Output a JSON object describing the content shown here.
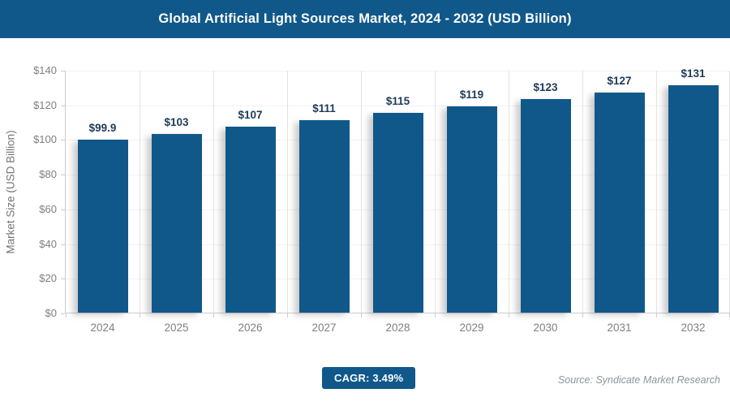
{
  "header": {
    "title": "Global Artificial Light Sources Market, 2024 - 2032 (USD Billion)"
  },
  "chart_data": {
    "type": "bar",
    "title": "Global Artificial Light Sources Market, 2024 - 2032 (USD Billion)",
    "categories": [
      "2024",
      "2025",
      "2026",
      "2027",
      "2028",
      "2029",
      "2030",
      "2031",
      "2032"
    ],
    "values": [
      99.9,
      103,
      107,
      111,
      115,
      119,
      123,
      127,
      131
    ],
    "value_labels": [
      "$99.9",
      "$103",
      "$107",
      "$111",
      "$115",
      "$119",
      "$123",
      "$127",
      "$131"
    ],
    "xlabel": "",
    "ylabel": "Market Size (USD Billion)",
    "ylim": [
      0,
      140
    ],
    "ytick_step": 20,
    "ytick_labels": [
      "$0",
      "$20",
      "$40",
      "$60",
      "$80",
      "$100",
      "$120",
      "$140"
    ],
    "grid": true,
    "legend": "none",
    "bar_color": "#10588A",
    "value_label_color": "#1F3A57"
  },
  "footer": {
    "cagr_label": "CAGR: 3.49%",
    "source": "Source: Syndicate Market Research"
  },
  "colors": {
    "primary": "#10588A",
    "axis_text": "#7F7F7F",
    "grid_vertical": "#E3E3E3",
    "grid_horizontal": "#F2F2F2",
    "axis_line": "#CCCCCC",
    "source_text": "#8C959B"
  }
}
